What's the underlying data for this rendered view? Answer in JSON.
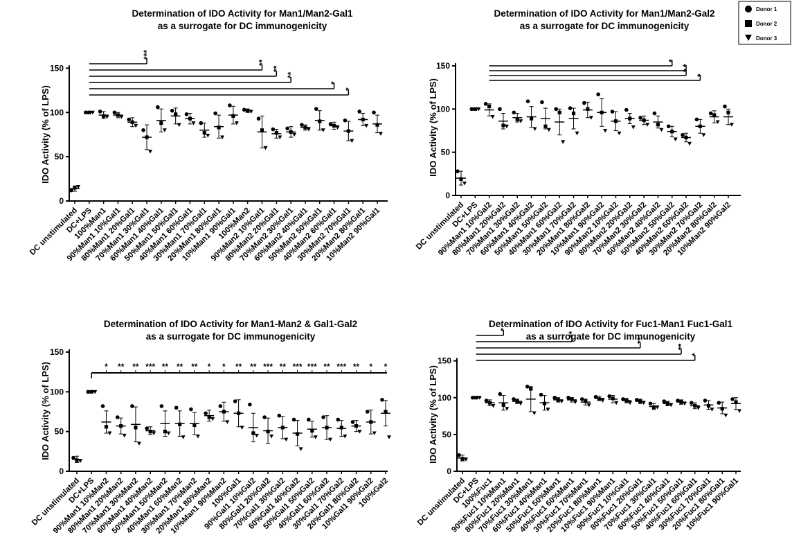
{
  "legend": {
    "items": [
      {
        "label": "Donor 1",
        "marker": "circle"
      },
      {
        "label": "Donor 2",
        "marker": "square"
      },
      {
        "label": "Donor 3",
        "marker": "triangle-down"
      }
    ]
  },
  "chart_data": [
    {
      "type": "scatter",
      "title": "Determination of IDO Activity for Man1/Man2-Gal1",
      "subtitle": "as a surrogate for DC immunogenicity",
      "ylabel": "IDO Activity (% of LPS)",
      "ylim": [
        0,
        155
      ],
      "yticks": [
        0,
        50,
        100,
        150
      ],
      "categories": [
        "DC unstimulated",
        "DC+LPS",
        "100%Man1",
        "90%Man1 10%Gal1",
        "80%Man1 20%Gal1",
        "70%Man1 30%Gal1",
        "60%Man1 40%Gal1",
        "50%Man1 50%Gal1",
        "40%Man1 60%Gal1",
        "30%Man1 70%Gal1",
        "20%Man1 80%Gal1",
        "10%Man1 90%Gal1",
        "100%Man2",
        "90%Man2 10%Gal1",
        "80%Man2 20%Gal1",
        "70%Man2 30%Gal1",
        "60%Man2 40%Gal1",
        "50%Man2 50%Gal1",
        "40%Man2 60%Gal1",
        "30%Man2 70%Gal1",
        "20%Man2 80%Gal1",
        "10%Man2 90%Gal1"
      ],
      "means": [
        14,
        100,
        97,
        97,
        89,
        72,
        91,
        96,
        93,
        80,
        84,
        97,
        102,
        78,
        76,
        78,
        83,
        91,
        85,
        79,
        92,
        87
      ],
      "sd": [
        3,
        0,
        4,
        3,
        5,
        14,
        13,
        9,
        6,
        8,
        13,
        10,
        2,
        18,
        5,
        6,
        3,
        11,
        4,
        11,
        7,
        10
      ],
      "series": [
        {
          "name": "Donor 1",
          "values": [
            12,
            100,
            101,
            100,
            92,
            80,
            106,
            102,
            98,
            88,
            99,
            108,
            103,
            93,
            81,
            82,
            86,
            104,
            87,
            91,
            101,
            100
          ]
        },
        {
          "name": "Donor 2",
          "values": [
            15,
            100,
            96,
            97,
            89,
            72,
            88,
            98,
            93,
            77,
            83,
            96,
            102,
            80,
            77,
            78,
            83,
            90,
            85,
            79,
            92,
            86
          ]
        },
        {
          "name": "Donor 3",
          "values": [
            16,
            100,
            95,
            95,
            85,
            56,
            80,
            86,
            88,
            74,
            72,
            88,
            101,
            60,
            72,
            75,
            81,
            80,
            83,
            68,
            85,
            76
          ]
        }
      ],
      "significance": [
        {
          "label": "***",
          "from": 1,
          "to": 5
        },
        {
          "label": "**",
          "from": 1,
          "to": 13
        },
        {
          "label": "**",
          "from": 1,
          "to": 14
        },
        {
          "label": "**",
          "from": 1,
          "to": 15
        },
        {
          "label": "*",
          "from": 1,
          "to": 18
        },
        {
          "label": "*",
          "from": 1,
          "to": 19
        }
      ]
    },
    {
      "type": "scatter",
      "title": "Determination of IDO Activity for Man1/Man2-Gal2",
      "subtitle": "as a surrogate for DC immunogenicity",
      "ylabel": "IDO Activity (% of LPS)",
      "ylim": [
        0,
        150
      ],
      "yticks": [
        0,
        50,
        100,
        150
      ],
      "categories": [
        "DC unstimulated",
        "DC+LPS",
        "90%Man1 10%Gal2",
        "80%Man1 20%Gal2",
        "70%Man1 30%Gal2",
        "60%Man1 40%Gal2",
        "50%Man1 50%Gal2",
        "40%Man1 60%Gal2",
        "30%Man1 70%Gal2",
        "20%Man1 80%Gal2",
        "10%Man1 90%Gal2",
        "90%Man2 10%Gal2",
        "80%Man2 20%Gal2",
        "70%Man2 30%Gal2",
        "60%Man2 40%Gal2",
        "50%Man2 50%Gal2",
        "40%Man2 60%Gal2",
        "30%Man2 70%Gal2",
        "20%Man2 80%Gal2",
        "10%Man2 90%Gal2"
      ],
      "means": [
        20,
        100,
        99,
        86,
        90,
        91,
        89,
        85,
        89,
        99,
        96,
        86,
        89,
        87,
        85,
        74,
        67,
        80,
        91,
        91
      ],
      "sd": [
        8,
        0,
        7,
        9,
        5,
        12,
        12,
        15,
        12,
        9,
        16,
        11,
        6,
        5,
        7,
        6,
        5,
        8,
        7,
        9
      ],
      "series": [
        {
          "name": "Donor 1",
          "values": [
            28,
            100,
            106,
            100,
            96,
            109,
            108,
            100,
            101,
            107,
            117,
            97,
            99,
            90,
            95,
            80,
            70,
            88,
            95,
            103
          ]
        },
        {
          "name": "Donor 2",
          "values": [
            19,
            100,
            103,
            81,
            88,
            89,
            80,
            96,
            95,
            100,
            96,
            86,
            89,
            87,
            82,
            74,
            67,
            80,
            93,
            96
          ]
        },
        {
          "name": "Donor 3",
          "values": [
            14,
            100,
            91,
            80,
            86,
            77,
            76,
            62,
            72,
            90,
            75,
            72,
            79,
            82,
            76,
            65,
            60,
            70,
            85,
            82
          ]
        }
      ],
      "significance": [
        {
          "label": "*",
          "from": 2,
          "to": 15
        },
        {
          "label": "*",
          "from": 2,
          "to": 16
        },
        {
          "label": "*",
          "from": 2,
          "to": 16
        },
        {
          "label": "*",
          "from": 2,
          "to": 17
        }
      ]
    },
    {
      "type": "scatter",
      "title": "Determination of IDO Activity for Man1-Man2 & Gal1-Gal2",
      "subtitle": "as a surrogate for DC immunogenicity",
      "ylabel": "IDO Activity (% of LPS)",
      "ylim": [
        0,
        150
      ],
      "yticks": [
        0,
        50,
        100,
        150
      ],
      "categories": [
        "DC unstimulated",
        "DC+LPS",
        "90%Man1 10%Man2",
        "80%Man1 20%Man2",
        "70%Man1 30%Man2",
        "60%Man1 40%Man2",
        "50%Man1 50%Man2",
        "40%Man1 60%Man2",
        "30%Man1 70%Man2",
        "20%Man1 80%Man2",
        "10%Man1 90%Man2",
        "100%Gal1",
        "90%Gal1 10%Gal2",
        "80%Gal1 20%Gal2",
        "70%Gal1 30%Gal2",
        "60%Gal1 40%Gal2",
        "50%Gal1 50%Gal2",
        "40%Gal1 60%Gal2",
        "30%Gal1 70%Gal2",
        "20%Gal1 80%Gal2",
        "10%Gal1 90%Gal2",
        "100%Gal2"
      ],
      "means": [
        15,
        100,
        62,
        57,
        59,
        51,
        60,
        60,
        60,
        70,
        75,
        73,
        55,
        51,
        55,
        48,
        53,
        55,
        54,
        57,
        62,
        73
      ],
      "sd": [
        4,
        0,
        14,
        10,
        22,
        5,
        16,
        16,
        14,
        7,
        12,
        17,
        18,
        16,
        14,
        16,
        10,
        15,
        10,
        7,
        15,
        16
      ],
      "series": [
        {
          "name": "Donor 1",
          "values": [
            17,
            100,
            82,
            68,
            82,
            54,
            82,
            80,
            78,
            73,
            82,
            88,
            84,
            68,
            70,
            65,
            65,
            68,
            65,
            62,
            75,
            90
          ]
        },
        {
          "name": "Donor 2",
          "values": [
            14,
            100,
            56,
            57,
            55,
            50,
            50,
            59,
            58,
            68,
            75,
            73,
            48,
            50,
            55,
            47,
            51,
            55,
            55,
            57,
            62,
            75
          ]
        },
        {
          "name": "Donor 3",
          "values": [
            13,
            100,
            48,
            45,
            35,
            48,
            48,
            43,
            44,
            66,
            62,
            55,
            45,
            44,
            40,
            28,
            43,
            40,
            44,
            50,
            48,
            43
          ]
        }
      ],
      "significance": [
        {
          "label": "*",
          "at": 2
        },
        {
          "label": "**",
          "at": 3
        },
        {
          "label": "**",
          "at": 4
        },
        {
          "label": "***",
          "at": 5
        },
        {
          "label": "**",
          "at": 6
        },
        {
          "label": "**",
          "at": 7
        },
        {
          "label": "**",
          "at": 8
        },
        {
          "label": "*",
          "at": 9
        },
        {
          "label": "*",
          "at": 10
        },
        {
          "label": "**",
          "at": 11
        },
        {
          "label": "**",
          "at": 12
        },
        {
          "label": "***",
          "at": 13
        },
        {
          "label": "**",
          "at": 14
        },
        {
          "label": "***",
          "at": 15
        },
        {
          "label": "***",
          "at": 16
        },
        {
          "label": "**",
          "at": 17
        },
        {
          "label": "***",
          "at": 18
        },
        {
          "label": "**",
          "at": 19
        },
        {
          "label": "*",
          "at": 20
        },
        {
          "label": "*",
          "at": 21
        }
      ]
    },
    {
      "type": "scatter",
      "title": "Determination of IDO Activity for Fuc1-Man1 Fuc1-Gal1",
      "subtitle": "as a surrogate for DC immunogenicity",
      "ylabel": "IDO Activity (% of LPS)",
      "ylim": [
        0,
        160
      ],
      "yticks": [
        0,
        50,
        100,
        150
      ],
      "categories": [
        "DC unstimulated",
        "DC+LPS",
        "100%Fuc1",
        "90%Fuc1 10%Man1",
        "80%Fuc1 20%Man1",
        "70%Fuc1 30%Man1",
        "60%Fuc1 40%Man1",
        "50%Fuc1 50%Man1",
        "40%Fuc1 60%Man1",
        "30%Fuc1 70%Man1",
        "20%Fuc1 80%Man1",
        "10%Fuc1 90%Man1",
        "90%Fuc1 10%Gal1",
        "80%Fuc1 20%Gal1",
        "70%Fuc1 30%Gal1",
        "60%Fuc1 40%Gal1",
        "50%Fuc1 50%Gal1",
        "40%Fuc1 60%Gal1",
        "30%Fuc1 70%Gal1",
        "20%Fuc1 80%Gal1",
        "10%Fuc1 90%Gal1"
      ],
      "means": [
        18,
        100,
        93,
        93,
        95,
        98,
        93,
        97,
        97,
        94,
        99,
        98,
        96,
        95,
        88,
        92,
        94,
        89,
        90,
        86,
        92
      ],
      "sd": [
        4,
        0,
        4,
        10,
        3,
        17,
        10,
        3,
        3,
        4,
        3,
        5,
        3,
        3,
        4,
        3,
        3,
        4,
        6,
        8,
        8
      ],
      "series": [
        {
          "name": "Donor 1",
          "values": [
            22,
            100,
            96,
            105,
            98,
            115,
            104,
            100,
            100,
            98,
            101,
            102,
            98,
            97,
            92,
            95,
            96,
            93,
            96,
            93,
            98
          ]
        },
        {
          "name": "Donor 2",
          "values": [
            17,
            100,
            93,
            90,
            95,
            112,
            92,
            97,
            98,
            95,
            98,
            99,
            96,
            95,
            87,
            92,
            94,
            89,
            89,
            85,
            94
          ]
        },
        {
          "name": "Donor 3",
          "values": [
            16,
            100,
            89,
            85,
            92,
            79,
            84,
            95,
            94,
            90,
            96,
            93,
            93,
            93,
            87,
            90,
            92,
            86,
            84,
            76,
            82
          ]
        }
      ],
      "significance": [
        {
          "label": "*",
          "from": 1,
          "to": 3
        },
        {
          "label": "**",
          "from": 1,
          "to": 8
        },
        {
          "label": "**",
          "from": 1,
          "to": 13
        },
        {
          "label": "**",
          "from": 1,
          "to": 16
        },
        {
          "label": "*",
          "from": 1,
          "to": 17
        }
      ]
    }
  ]
}
